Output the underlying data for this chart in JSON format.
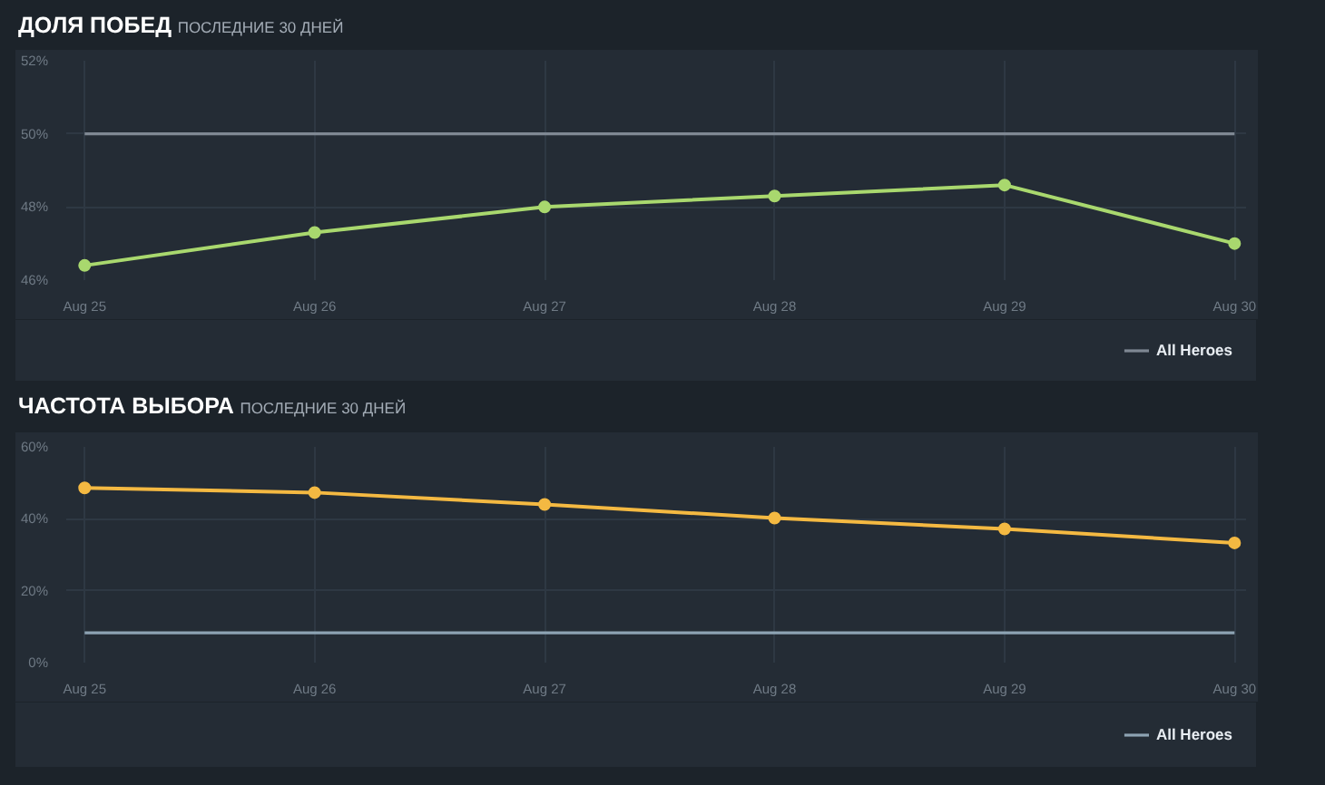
{
  "chart_data": [
    {
      "type": "line",
      "title": "ДОЛЯ ПОБЕД",
      "subtitle": "ПОСЛЕДНИЕ 30 ДНЕЙ",
      "categories": [
        "Aug 25",
        "Aug 26",
        "Aug 27",
        "Aug 28",
        "Aug 29",
        "Aug 30"
      ],
      "series": [
        {
          "color": "#a9d86e",
          "values": [
            46.4,
            47.3,
            48.0,
            48.3,
            48.6,
            47.0
          ]
        },
        {
          "name": "All Heroes",
          "color": "#7f8893",
          "marker": "none",
          "values": [
            50,
            50,
            50,
            50,
            50,
            50
          ]
        }
      ],
      "ylim": [
        46,
        52
      ],
      "yticks": [
        {
          "value": 46,
          "label": "46%"
        },
        {
          "value": 48,
          "label": "48%"
        },
        {
          "value": 50,
          "label": "50%"
        },
        {
          "value": 52,
          "label": "52%"
        }
      ],
      "grid": true,
      "legend": "bottom right",
      "marker": "circle"
    },
    {
      "type": "line",
      "title": "ЧАСТОТА ВЫБОРА",
      "subtitle": "ПОСЛЕДНИЕ 30 ДНЕЙ",
      "categories": [
        "Aug 25",
        "Aug 26",
        "Aug 27",
        "Aug 28",
        "Aug 29",
        "Aug 30"
      ],
      "series": [
        {
          "color": "#f4b942",
          "values": [
            48.6,
            47.3,
            44.0,
            40.2,
            37.2,
            33.3
          ]
        },
        {
          "name": "All Heroes",
          "color": "#8da3b3",
          "marker": "none",
          "values": [
            8.3,
            8.3,
            8.3,
            8.3,
            8.3,
            8.3
          ]
        }
      ],
      "ylim": [
        0,
        60
      ],
      "yticks": [
        {
          "value": 0,
          "label": "0%"
        },
        {
          "value": 20,
          "label": "20%"
        },
        {
          "value": 40,
          "label": "40%"
        },
        {
          "value": 60,
          "label": "60%"
        }
      ],
      "grid": true,
      "legend": "bottom right",
      "marker": "circle"
    }
  ]
}
